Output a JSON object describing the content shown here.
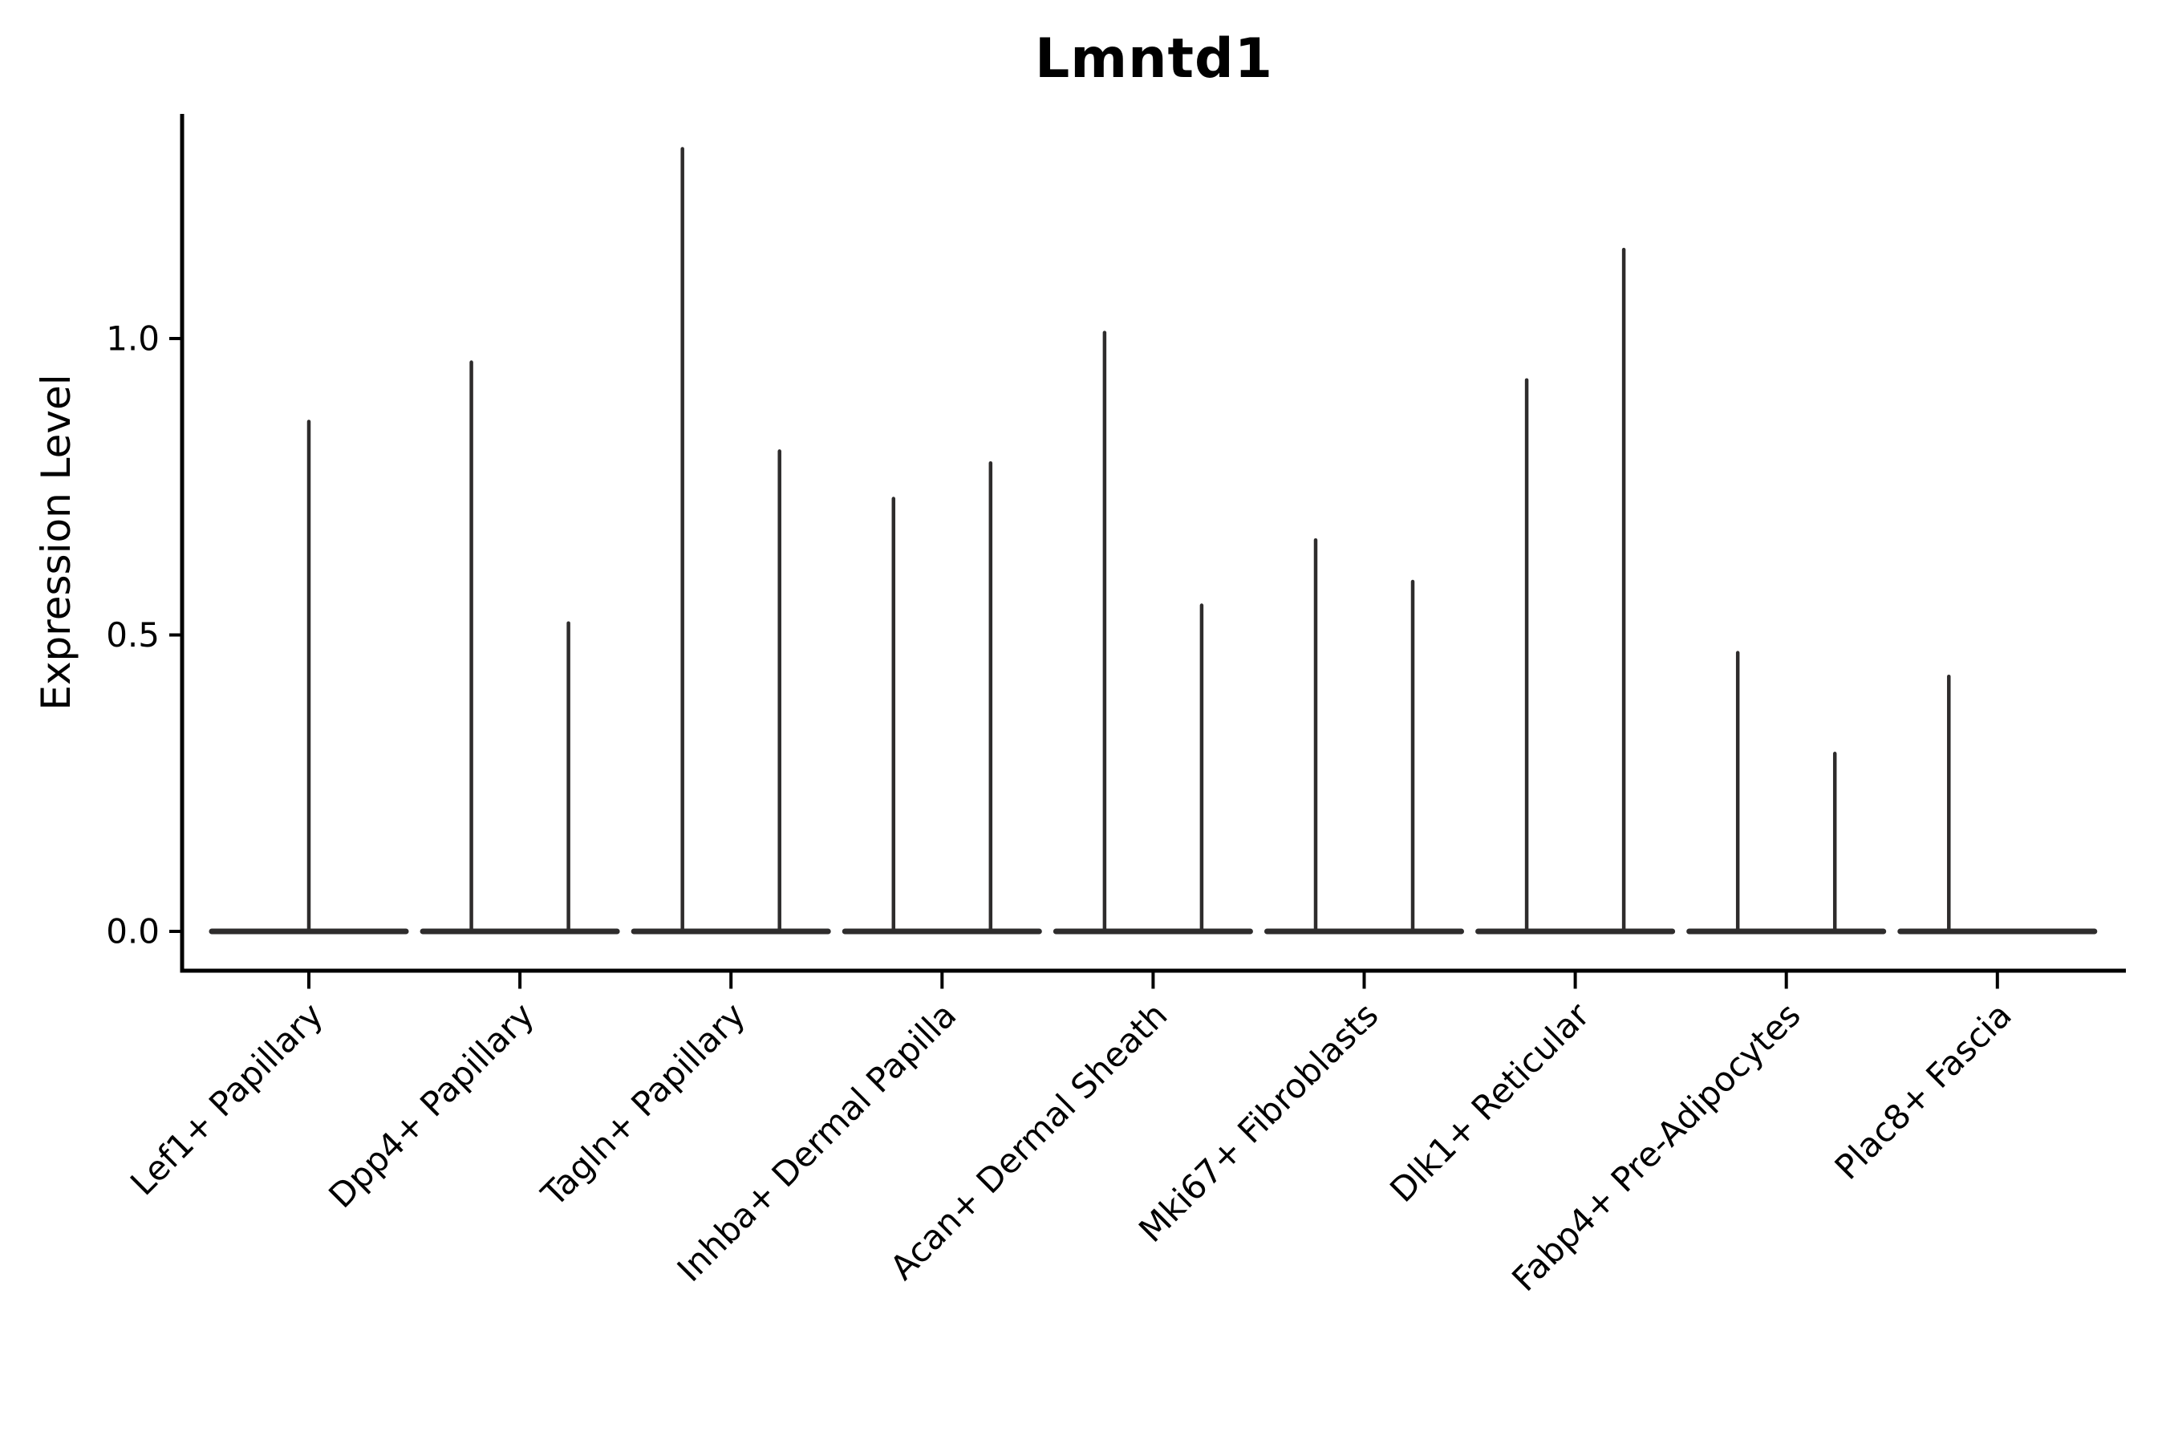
{
  "title": "Lmntd1",
  "axes": {
    "y_label": "Expression Level",
    "y_ticks": [
      {
        "label": "0.0",
        "value": 0.0
      },
      {
        "label": "0.5",
        "value": 0.5
      },
      {
        "label": "1.0",
        "value": 1.0
      }
    ]
  },
  "style": {
    "background": "#ffffff",
    "axis_color": "#000000",
    "text_color": "#000000",
    "violin_color": "#2e2c2c"
  },
  "chart_data": {
    "type": "violin",
    "title": "Lmntd1",
    "xlabel": "",
    "ylabel": "Expression Level",
    "ylim": [
      -0.07,
      1.38
    ],
    "grid": false,
    "legend": false,
    "description": "Single-cell expression violin plot; each violin is a flat base at 0 with a thin density spike up to the max expression value. Categories with two spikes contain two dodged violins; flat-only violins have no spike.",
    "categories": [
      "Lef1+ Papillary",
      "Dpp4+ Papillary",
      "Tagln+ Papillary",
      "Inhba+ Dermal Papilla",
      "Acan+ Dermal Sheath",
      "Mki67+ Fibroblasts",
      "Dlk1+ Reticular",
      "Fabp4+ Pre-Adipocytes",
      "Plac8+ Fascia"
    ],
    "violins": [
      {
        "category": "Lef1+ Papillary",
        "base_half_width": 0.46,
        "spikes": [
          {
            "offset": 0.0,
            "max": 0.86
          }
        ]
      },
      {
        "category": "Dpp4+ Papillary",
        "base_half_width": 0.46,
        "spikes": [
          {
            "offset": -0.23,
            "max": 0.96
          },
          {
            "offset": 0.23,
            "max": 0.52
          }
        ]
      },
      {
        "category": "Tagln+ Papillary",
        "base_half_width": 0.46,
        "spikes": [
          {
            "offset": -0.23,
            "max": 1.32
          },
          {
            "offset": 0.23,
            "max": 0.81
          }
        ]
      },
      {
        "category": "Inhba+ Dermal Papilla",
        "base_half_width": 0.46,
        "spikes": [
          {
            "offset": -0.23,
            "max": 0.73
          },
          {
            "offset": 0.23,
            "max": 0.79
          }
        ]
      },
      {
        "category": "Acan+ Dermal Sheath",
        "base_half_width": 0.46,
        "spikes": [
          {
            "offset": -0.23,
            "max": 1.01
          },
          {
            "offset": 0.23,
            "max": 0.55
          }
        ]
      },
      {
        "category": "Mki67+ Fibroblasts",
        "base_half_width": 0.46,
        "spikes": [
          {
            "offset": -0.23,
            "max": 0.66
          },
          {
            "offset": 0.23,
            "max": 0.59
          }
        ]
      },
      {
        "category": "Dlk1+ Reticular",
        "base_half_width": 0.46,
        "spikes": [
          {
            "offset": -0.23,
            "max": 0.93
          },
          {
            "offset": 0.23,
            "max": 1.15
          }
        ]
      },
      {
        "category": "Fabp4+ Pre-Adipocytes",
        "base_half_width": 0.46,
        "spikes": [
          {
            "offset": -0.23,
            "max": 0.47
          },
          {
            "offset": 0.23,
            "max": 0.3
          }
        ]
      },
      {
        "category": "Plac8+ Fascia",
        "base_half_width": 0.46,
        "spikes": [
          {
            "offset": -0.23,
            "max": 0.43
          }
        ]
      }
    ]
  }
}
